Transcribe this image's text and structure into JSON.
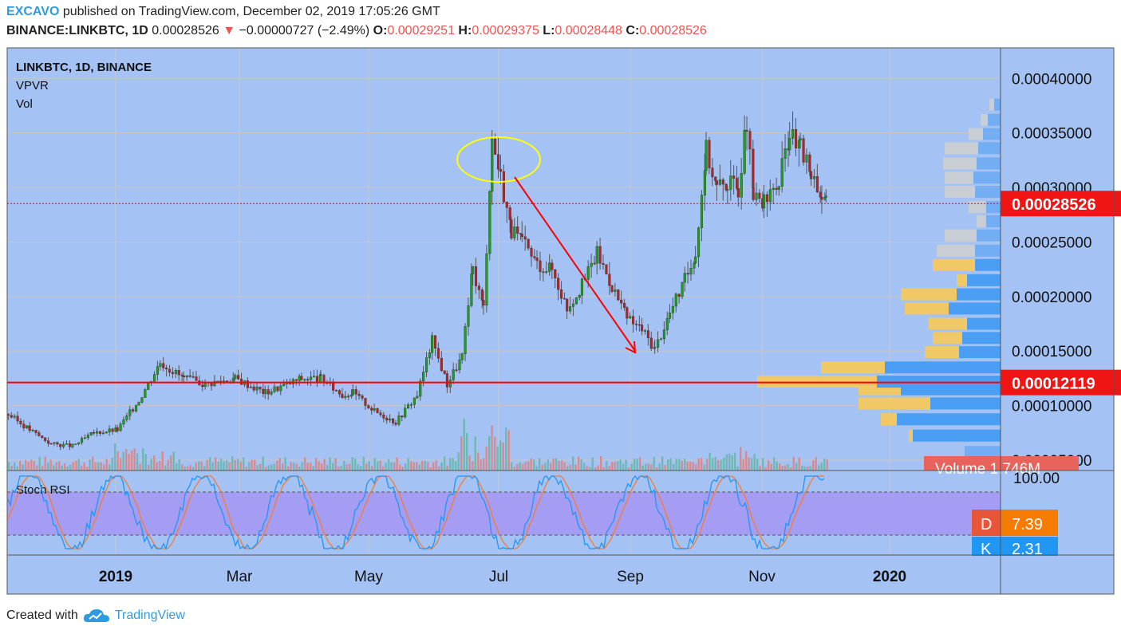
{
  "header": {
    "publisher": "EXCAVO",
    "published_text": "published on TradingView.com, December 02, 2019 17:05:26 GMT",
    "symbol": "BINANCE:LINKBTC, 1D",
    "last": "0.00028526",
    "change_arrow": "▼",
    "change": "−0.00000727 (−2.49%)",
    "o_label": "O:",
    "o_val": "0.00029251",
    "h_label": "H:",
    "h_val": "0.00029375",
    "l_label": "L:",
    "l_val": "0.00028448",
    "c_label": "C:",
    "c_val": "0.00028526"
  },
  "legend": [
    "LINKBTC, 1D, BINANCE",
    "VPVR",
    "Vol"
  ],
  "footer": {
    "created_with": "Created with",
    "brand": "TradingView"
  },
  "colors": {
    "background": "#a4c2f4",
    "up_candle": "#1aa01a",
    "down_candle": "#b52424",
    "wick": "#555555",
    "volume_up": "#6fb8b3",
    "volume_down": "#d98a8e",
    "vpvr_blue": "#4a9ff5",
    "vpvr_yellow": "#f0c866",
    "stoch_band": "#a59cf3",
    "stoch_k": "#2196f3",
    "stoch_d": "#f57c30",
    "price_line": "#ff0000",
    "annotation_yellow": "#ffff00"
  },
  "chart_data": [
    {
      "type": "candlestick",
      "title": "LINKBTC, 1D, BINANCE",
      "x_ticks": [
        "2019",
        "Mar",
        "May",
        "Jul",
        "Sep",
        "Nov",
        "2020"
      ],
      "y_ticks": [
        "0.00040000",
        "0.00035000",
        "0.00030000",
        "0.00025000",
        "0.00020000",
        "0.00015000",
        "0.00010000",
        "0.00005000"
      ],
      "ylim": [
        4e-05,
        0.00043
      ],
      "last_price": "0.00028526",
      "horizontal_level": "0.00012119",
      "volume_label": "Volume",
      "volume_value": "1.746M",
      "close_points": [
        [
          "2018-11-15",
          9.2e-05
        ],
        [
          "2018-11-25",
          7.8e-05
        ],
        [
          "2018-12-05",
          6.5e-05
        ],
        [
          "2018-12-15",
          6.3e-05
        ],
        [
          "2018-12-25",
          7.5e-05
        ],
        [
          "2019-01-05",
          7.8e-05
        ],
        [
          "2019-01-15",
          0.000105
        ],
        [
          "2019-01-25",
          0.00014
        ],
        [
          "2019-02-05",
          0.000125
        ],
        [
          "2019-02-15",
          0.00012
        ],
        [
          "2019-03-01",
          0.000125
        ],
        [
          "2019-03-15",
          0.000112
        ],
        [
          "2019-04-01",
          0.000125
        ],
        [
          "2019-04-10",
          0.000125
        ],
        [
          "2019-04-20",
          0.00011
        ],
        [
          "2019-04-25",
          0.000112
        ],
        [
          "2019-05-05",
          9.5e-05
        ],
        [
          "2019-05-15",
          8.5e-05
        ],
        [
          "2019-05-25",
          0.00011
        ],
        [
          "2019-06-01",
          0.00016
        ],
        [
          "2019-06-08",
          0.00012
        ],
        [
          "2019-06-15",
          0.000145
        ],
        [
          "2019-06-20",
          0.000225
        ],
        [
          "2019-06-25",
          0.00019
        ],
        [
          "2019-06-29",
          0.000345
        ],
        [
          "2019-07-03",
          0.00031
        ],
        [
          "2019-07-08",
          0.00026
        ],
        [
          "2019-07-13",
          0.00025
        ],
        [
          "2019-07-20",
          0.00023
        ],
        [
          "2019-07-27",
          0.000225
        ],
        [
          "2019-08-03",
          0.00019
        ],
        [
          "2019-08-10",
          0.00021
        ],
        [
          "2019-08-17",
          0.00024
        ],
        [
          "2019-08-24",
          0.00021
        ],
        [
          "2019-08-31",
          0.00018
        ],
        [
          "2019-09-07",
          0.00017
        ],
        [
          "2019-09-13",
          0.000152
        ],
        [
          "2019-09-20",
          0.000185
        ],
        [
          "2019-09-27",
          0.000215
        ],
        [
          "2019-10-02",
          0.00024
        ],
        [
          "2019-10-07",
          0.000335
        ],
        [
          "2019-10-12",
          0.0003
        ],
        [
          "2019-10-17",
          0.000305
        ],
        [
          "2019-10-22",
          0.0003
        ],
        [
          "2019-10-26",
          0.00036
        ],
        [
          "2019-10-29",
          0.00029
        ],
        [
          "2019-11-03",
          0.000285
        ],
        [
          "2019-11-10",
          0.000305
        ],
        [
          "2019-11-15",
          0.00035
        ],
        [
          "2019-11-20",
          0.000335
        ],
        [
          "2019-11-25",
          0.000315
        ],
        [
          "2019-11-30",
          0.000292
        ],
        [
          "2019-12-02",
          0.000285
        ]
      ]
    },
    {
      "type": "line",
      "title": "Stoch RSI",
      "y_ticks": [
        "100.00"
      ],
      "series": [
        {
          "name": "D",
          "last": "7.39"
        },
        {
          "name": "K",
          "last": "2.31"
        }
      ]
    }
  ]
}
